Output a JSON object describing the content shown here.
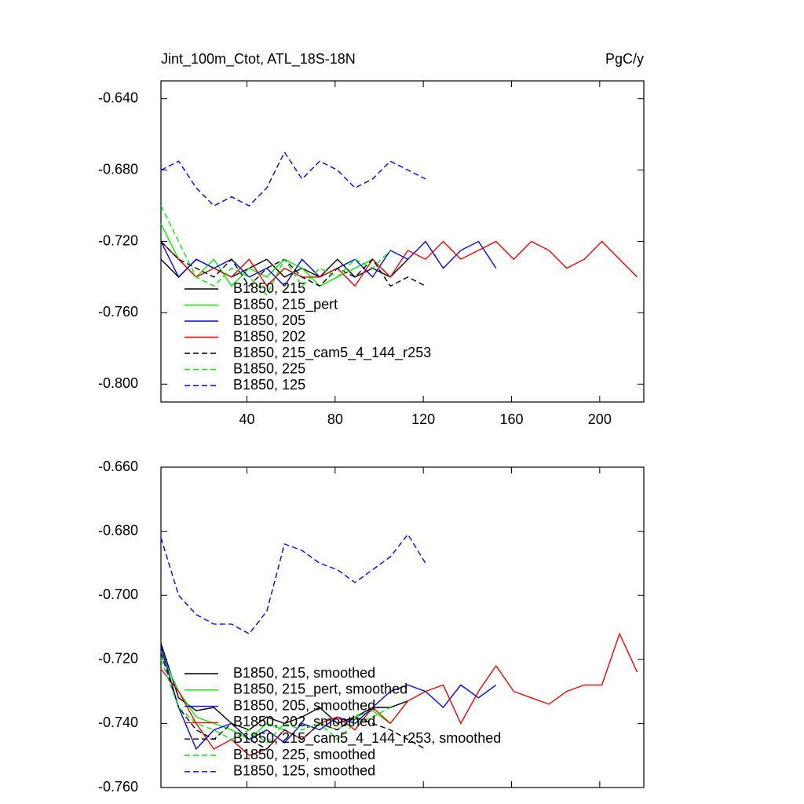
{
  "chart_data": [
    {
      "type": "line",
      "title": "Jint_100m_Ctot, ATL_18S-18N",
      "units": "PgC/y",
      "x": [
        1,
        9,
        17,
        25,
        33,
        41,
        49,
        57,
        65,
        73,
        81,
        89,
        97,
        105,
        113,
        121,
        129,
        137,
        145,
        153,
        161,
        169,
        177,
        185,
        193,
        201,
        209,
        217
      ],
      "xlim": [
        1,
        220
      ],
      "xticks": [
        40,
        80,
        120,
        160,
        200
      ],
      "show_xtick_labels": true,
      "ylim": [
        -0.81,
        -0.63
      ],
      "yticks": [
        {
          "value": -0.64,
          "label": "-0.640"
        },
        {
          "value": -0.68,
          "label": "-0.680"
        },
        {
          "value": -0.72,
          "label": "-0.720"
        },
        {
          "value": -0.76,
          "label": "-0.760"
        },
        {
          "value": -0.8,
          "label": "-0.800"
        }
      ],
      "series": [
        {
          "name": "B1850, 215",
          "color": "#000000",
          "dashed": false,
          "values": [
            -0.73,
            -0.74,
            -0.73,
            -0.735,
            -0.74,
            -0.735,
            -0.73,
            -0.74,
            -0.735,
            -0.74,
            -0.73,
            -0.74,
            -0.735,
            -0.74,
            -0.73,
            null,
            null,
            null,
            null,
            null,
            null,
            null,
            null,
            null,
            null,
            null,
            null,
            null
          ]
        },
        {
          "name": "B1850, 215_pert",
          "color": "#00ee00",
          "dashed": false,
          "values": [
            -0.71,
            -0.73,
            -0.74,
            -0.73,
            -0.745,
            -0.735,
            -0.74,
            -0.73,
            -0.735,
            -0.745,
            -0.74,
            -0.735,
            -0.73,
            -0.74,
            null,
            null,
            null,
            null,
            null,
            null,
            null,
            null,
            null,
            null,
            null,
            null,
            null,
            null
          ]
        },
        {
          "name": "B1850, 205",
          "color": "#0000ff",
          "dashed": false,
          "values": [
            -0.72,
            -0.74,
            -0.73,
            -0.735,
            -0.73,
            -0.74,
            -0.735,
            -0.745,
            -0.73,
            -0.74,
            -0.735,
            -0.73,
            -0.74,
            -0.725,
            -0.73,
            -0.72,
            -0.735,
            -0.725,
            -0.72,
            -0.735,
            null,
            null,
            null,
            null,
            null,
            null,
            null,
            null
          ]
        },
        {
          "name": "B1850, 202",
          "color": "#ee0000",
          "dashed": false,
          "values": [
            -0.72,
            -0.73,
            -0.74,
            -0.735,
            -0.74,
            -0.73,
            -0.745,
            -0.735,
            -0.74,
            -0.74,
            -0.735,
            -0.745,
            -0.73,
            -0.74,
            -0.725,
            -0.73,
            -0.72,
            -0.73,
            -0.725,
            -0.72,
            -0.73,
            -0.72,
            -0.725,
            -0.735,
            -0.73,
            -0.72,
            -0.73,
            -0.74
          ]
        },
        {
          "name": "B1850, 215_cam5_4_144_r253",
          "color": "#000000",
          "dashed": true,
          "values": [
            -0.72,
            -0.73,
            -0.735,
            -0.74,
            -0.73,
            -0.745,
            -0.735,
            -0.73,
            -0.74,
            -0.745,
            -0.735,
            -0.74,
            -0.73,
            -0.745,
            -0.74,
            -0.745,
            null,
            null,
            null,
            null,
            null,
            null,
            null,
            null,
            null,
            null,
            null,
            null
          ]
        },
        {
          "name": "B1850, 225",
          "color": "#00ee00",
          "dashed": true,
          "values": [
            -0.7,
            -0.72,
            -0.74,
            -0.745,
            -0.735,
            -0.74,
            -0.75,
            -0.73,
            -0.745,
            -0.735,
            -0.74,
            -0.73,
            -0.735,
            -0.725,
            null,
            null,
            null,
            null,
            null,
            null,
            null,
            null,
            null,
            null,
            null,
            null,
            null,
            null
          ]
        },
        {
          "name": "B1850, 125",
          "color": "#0000ff",
          "dashed": true,
          "values": [
            -0.68,
            -0.675,
            -0.69,
            -0.7,
            -0.695,
            -0.7,
            -0.69,
            -0.67,
            -0.685,
            -0.675,
            -0.68,
            -0.69,
            -0.685,
            -0.675,
            -0.68,
            -0.685,
            null,
            null,
            null,
            null,
            null,
            null,
            null,
            null,
            null,
            null,
            null,
            null
          ]
        }
      ]
    },
    {
      "type": "line",
      "x": [
        1,
        9,
        17,
        25,
        33,
        41,
        49,
        57,
        65,
        73,
        81,
        89,
        97,
        105,
        113,
        121,
        129,
        137,
        145,
        153,
        161,
        169,
        177,
        185,
        193,
        201,
        209,
        217
      ],
      "xlim": [
        1,
        220
      ],
      "xticks": [
        40,
        80,
        120,
        160,
        200
      ],
      "show_xtick_labels": false,
      "ylim": [
        -0.76,
        -0.66
      ],
      "yticks": [
        {
          "value": -0.66,
          "label": "-0.660"
        },
        {
          "value": -0.68,
          "label": "-0.680"
        },
        {
          "value": -0.7,
          "label": "-0.700"
        },
        {
          "value": -0.72,
          "label": "-0.720"
        },
        {
          "value": -0.74,
          "label": "-0.740"
        },
        {
          "value": -0.76,
          "label": "-0.760"
        }
      ],
      "series": [
        {
          "name": "B1850, 215, smoothed",
          "color": "#000000",
          "dashed": false,
          "values": [
            -0.715,
            -0.732,
            -0.736,
            -0.735,
            -0.74,
            -0.742,
            -0.738,
            -0.74,
            -0.738,
            -0.735,
            -0.74,
            -0.738,
            -0.735,
            -0.735,
            -0.733,
            null,
            null,
            null,
            null,
            null,
            null,
            null,
            null,
            null,
            null,
            null,
            null,
            null
          ]
        },
        {
          "name": "B1850, 215_pert, smoothed",
          "color": "#00ee00",
          "dashed": false,
          "values": [
            -0.718,
            -0.73,
            -0.738,
            -0.74,
            -0.742,
            -0.745,
            -0.74,
            -0.742,
            -0.745,
            -0.74,
            -0.742,
            -0.738,
            -0.736,
            -0.74,
            null,
            null,
            null,
            null,
            null,
            null,
            null,
            null,
            null,
            null,
            null,
            null,
            null,
            null
          ]
        },
        {
          "name": "B1850, 205, smoothed",
          "color": "#0000ff",
          "dashed": false,
          "values": [
            -0.716,
            -0.735,
            -0.748,
            -0.742,
            -0.74,
            -0.745,
            -0.742,
            -0.746,
            -0.74,
            -0.742,
            -0.738,
            -0.74,
            -0.735,
            -0.73,
            -0.728,
            -0.73,
            -0.735,
            -0.728,
            -0.732,
            -0.728,
            null,
            null,
            null,
            null,
            null,
            null,
            null,
            null
          ]
        },
        {
          "name": "B1850, 202, smoothed",
          "color": "#ee0000",
          "dashed": false,
          "values": [
            -0.723,
            -0.73,
            -0.74,
            -0.748,
            -0.745,
            -0.75,
            -0.748,
            -0.742,
            -0.745,
            -0.74,
            -0.738,
            -0.742,
            -0.735,
            -0.74,
            -0.733,
            -0.73,
            -0.728,
            -0.74,
            -0.73,
            -0.722,
            -0.73,
            -0.732,
            -0.734,
            -0.73,
            -0.728,
            -0.728,
            -0.712,
            -0.724
          ]
        },
        {
          "name": "B1850, 215_cam5_4_144_r253, smoothed",
          "color": "#000000",
          "dashed": true,
          "values": [
            -0.718,
            -0.735,
            -0.742,
            -0.745,
            -0.74,
            -0.745,
            -0.748,
            -0.742,
            -0.745,
            -0.74,
            -0.742,
            -0.738,
            -0.74,
            -0.742,
            -0.745,
            -0.748,
            null,
            null,
            null,
            null,
            null,
            null,
            null,
            null,
            null,
            null,
            null,
            null
          ]
        },
        {
          "name": "B1850, 225, smoothed",
          "color": "#00ee00",
          "dashed": true,
          "values": [
            -0.72,
            -0.735,
            -0.74,
            -0.742,
            -0.745,
            -0.742,
            -0.746,
            -0.74,
            -0.742,
            -0.74,
            -0.745,
            -0.74,
            -0.738,
            -0.735,
            null,
            null,
            null,
            null,
            null,
            null,
            null,
            null,
            null,
            null,
            null,
            null,
            null,
            null
          ]
        },
        {
          "name": "B1850, 125, smoothed",
          "color": "#0000ff",
          "dashed": true,
          "values": [
            -0.682,
            -0.7,
            -0.706,
            -0.709,
            -0.709,
            -0.712,
            -0.705,
            -0.684,
            -0.686,
            -0.69,
            -0.692,
            -0.696,
            -0.692,
            -0.688,
            -0.681,
            -0.69,
            null,
            null,
            null,
            null,
            null,
            null,
            null,
            null,
            null,
            null,
            null,
            null
          ]
        }
      ]
    }
  ]
}
